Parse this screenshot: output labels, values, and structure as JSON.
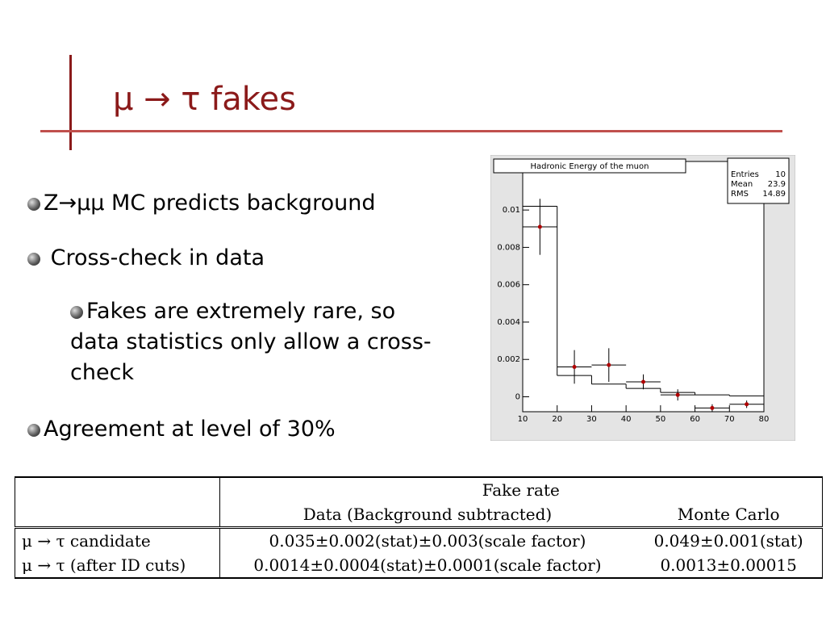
{
  "title": "μ → τ fakes",
  "bullets": [
    {
      "text": "Z→μμ MC predicts background"
    },
    {
      "text": "Cross-check in data"
    },
    {
      "text": "Fakes are extremely rare, so data statistics only allow a cross-check"
    },
    {
      "text": "Agreement at level of 30%"
    }
  ],
  "chart_data": {
    "type": "histogram",
    "title": "Hadronic Energy of the muon",
    "bins": [
      10,
      20,
      30,
      40,
      50,
      60,
      70,
      80
    ],
    "values": [
      0.0102,
      0.00114,
      0.00068,
      0.00045,
      0.00023,
      0.0001,
      5e-05
    ],
    "color": "#000000",
    "points": {
      "x": [
        15,
        25,
        35,
        45,
        55,
        65,
        75
      ],
      "values": [
        0.0091,
        0.0016,
        0.0017,
        0.0008,
        0.0001,
        -0.0006,
        -0.0004
      ],
      "errors": [
        0.0015,
        0.0009,
        0.0009,
        0.0004,
        0.0003,
        0.0002,
        0.0002
      ],
      "color": "#b00000"
    },
    "xlim": [
      10,
      80
    ],
    "xticks": [
      10,
      20,
      30,
      40,
      50,
      60,
      70,
      80
    ],
    "ylim": [
      -0.0008,
      0.0126
    ],
    "yticks": [
      0,
      0.002,
      0.004,
      0.006,
      0.008,
      0.01
    ],
    "stats": [
      {
        "label": "Entries",
        "value": "10"
      },
      {
        "label": "Mean",
        "value": "23.9"
      },
      {
        "label": "RMS",
        "value": "14.89"
      }
    ]
  },
  "table": {
    "header": [
      "Fake rate",
      "Data (Background subtracted)",
      "Monte Carlo"
    ],
    "rows": [
      [
        "μ → τ candidate",
        "0.035±0.002(stat)±0.003(scale factor)",
        "0.049±0.001(stat)"
      ],
      [
        "μ → τ (after ID cuts)",
        "0.0014±0.0004(stat)±0.0001(scale factor)",
        "0.0013±0.00015"
      ]
    ]
  }
}
